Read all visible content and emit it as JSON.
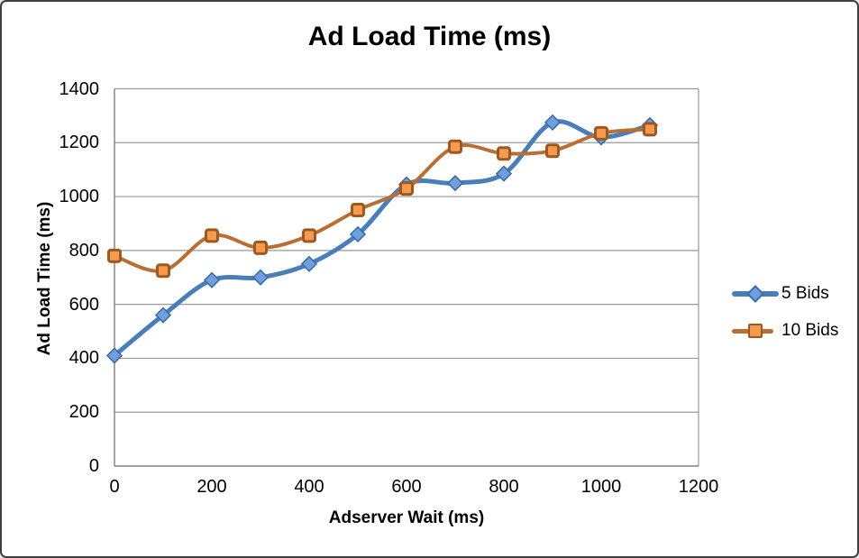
{
  "title": "Ad Load Time (ms)",
  "chart_data": {
    "type": "line",
    "title": "Ad Load Time (ms)",
    "xlabel": "Adserver Wait (ms)",
    "ylabel": "Ad Load Time (ms)",
    "x": [
      0,
      100,
      200,
      300,
      400,
      500,
      600,
      700,
      800,
      900,
      1000,
      1100
    ],
    "series": [
      {
        "name": "5 Bids",
        "marker": "diamond",
        "line_color": "#4a7ebb",
        "marker_fill": "#6f9fdc",
        "marker_stroke": "#3e6da8",
        "values": [
          410,
          560,
          690,
          700,
          750,
          860,
          1045,
          1050,
          1085,
          1275,
          1220,
          1265
        ]
      },
      {
        "name": "10 Bids",
        "marker": "square",
        "line_color": "#b96f33",
        "marker_fill": "#f59a4f",
        "marker_stroke": "#9c5a20",
        "values": [
          780,
          725,
          855,
          810,
          855,
          950,
          1030,
          1185,
          1160,
          1170,
          1235,
          1250
        ]
      }
    ],
    "x_ticks": [
      "0",
      "200",
      "400",
      "600",
      "800",
      "1000",
      "1200"
    ],
    "x_tick_values": [
      0,
      200,
      400,
      600,
      800,
      1000,
      1200
    ],
    "y_ticks": [
      "0",
      "200",
      "400",
      "600",
      "800",
      "1000",
      "1200",
      "1400"
    ],
    "y_tick_values": [
      0,
      200,
      400,
      600,
      800,
      1000,
      1200,
      1400
    ],
    "xlim": [
      0,
      1200
    ],
    "ylim": [
      0,
      1400
    ],
    "grid": "horizontal",
    "smooth_lines": true,
    "legend_position": "right"
  },
  "colors": {
    "background": "#ffffff",
    "border": "#3f3f3f",
    "gridline": "#9a9a9a",
    "axis_line": "#808080",
    "text": "#000000"
  }
}
